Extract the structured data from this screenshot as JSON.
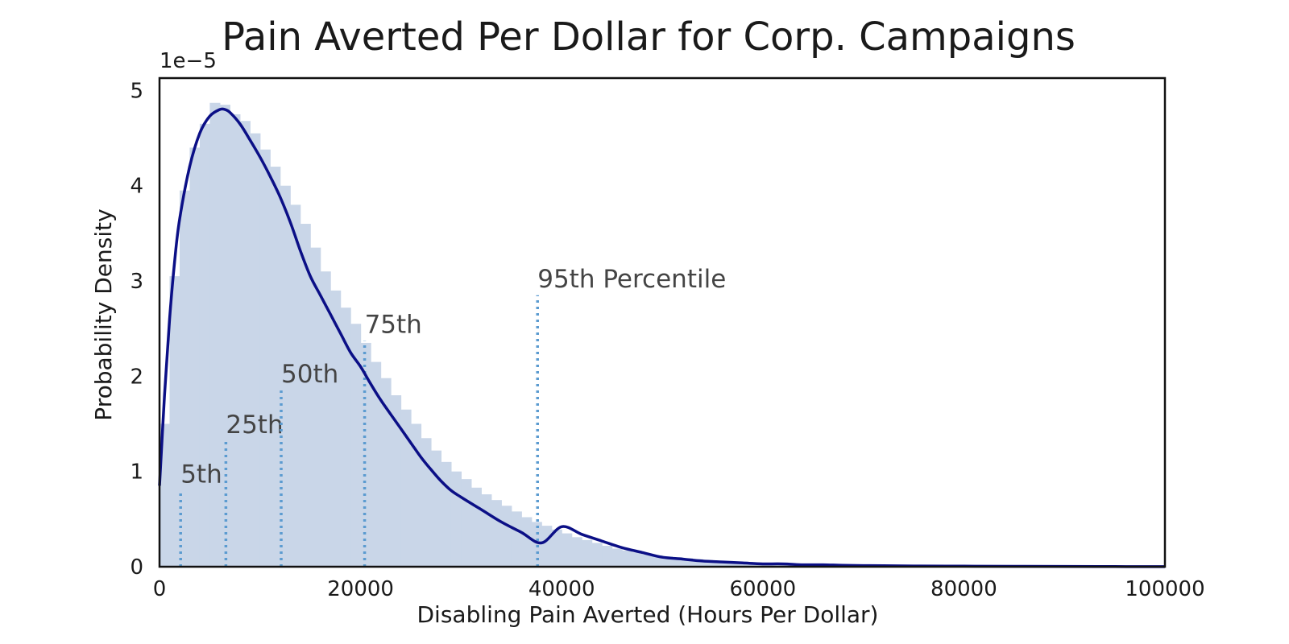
{
  "chart_data": {
    "type": "histogram+density",
    "title": "Pain Averted Per Dollar for Corp. Campaigns",
    "xlabel": "Disabling Pain Averted (Hours Per Dollar)",
    "ylabel": "Probability Density",
    "y_offset_label": "1e−5",
    "xlim": [
      0,
      100000
    ],
    "ylim": [
      0,
      5.13
    ],
    "x_ticks": [
      0,
      20000,
      40000,
      60000,
      80000,
      100000
    ],
    "x_tick_labels": [
      "0",
      "20000",
      "40000",
      "60000",
      "80000",
      "100000"
    ],
    "y_ticks": [
      0,
      1,
      2,
      3,
      4,
      5
    ],
    "y_tick_labels": [
      "0",
      "1",
      "2",
      "3",
      "4",
      "5"
    ],
    "colors": {
      "hist_fill": "#c9d6e8",
      "kde_line": "#0b0f86",
      "percentile_line": "#5b9bd0",
      "frame": "#111111"
    },
    "histogram": {
      "bin_width": 1000,
      "bin_starts": [
        0,
        1000,
        2000,
        3000,
        4000,
        5000,
        6000,
        7000,
        8000,
        9000,
        10000,
        11000,
        12000,
        13000,
        14000,
        15000,
        16000,
        17000,
        18000,
        19000,
        20000,
        21000,
        22000,
        23000,
        24000,
        25000,
        26000,
        27000,
        28000,
        29000,
        30000,
        31000,
        32000,
        33000,
        34000,
        35000,
        36000,
        37000,
        38000,
        39000,
        40000,
        41000,
        42000,
        43000,
        44000,
        45000,
        46000,
        47000,
        48000,
        49000,
        50000,
        51000,
        52000,
        53000,
        54000,
        55000,
        56000,
        57000,
        58000,
        59000,
        60000,
        61000,
        62000,
        63000,
        64000,
        65000,
        66000,
        67000,
        68000,
        69000,
        70000
      ],
      "densities": [
        1.5,
        3.05,
        3.95,
        4.4,
        4.65,
        4.87,
        4.85,
        4.75,
        4.68,
        4.55,
        4.38,
        4.2,
        4.0,
        3.8,
        3.6,
        3.35,
        3.1,
        2.9,
        2.72,
        2.55,
        2.35,
        2.15,
        1.98,
        1.8,
        1.65,
        1.5,
        1.35,
        1.22,
        1.1,
        1.0,
        0.92,
        0.83,
        0.76,
        0.7,
        0.64,
        0.58,
        0.52,
        0.47,
        0.43,
        0.39,
        0.35,
        0.31,
        0.28,
        0.25,
        0.22,
        0.19,
        0.17,
        0.15,
        0.13,
        0.12,
        0.11,
        0.1,
        0.09,
        0.08,
        0.07,
        0.06,
        0.06,
        0.05,
        0.05,
        0.04,
        0.04,
        0.03,
        0.03,
        0.03,
        0.02,
        0.02,
        0.02,
        0.02,
        0.02,
        0.01,
        0.01
      ]
    },
    "kde": {
      "x": [
        0,
        500,
        1000,
        1500,
        2000,
        3000,
        4000,
        5000,
        6000,
        6500,
        7000,
        8000,
        9000,
        10000,
        11000,
        12000,
        13000,
        14000,
        15000,
        16000,
        17000,
        18000,
        19000,
        20000,
        21000,
        22000,
        23000,
        24000,
        25000,
        26000,
        27000,
        28000,
        29000,
        30000,
        32000,
        34000,
        36000,
        38000,
        40000,
        42000,
        44000,
        46000,
        48000,
        50000,
        52000,
        54000,
        56000,
        58000,
        60000,
        62000,
        64000,
        66000,
        68000,
        70000,
        72000,
        75000,
        80000,
        85000,
        90000,
        95000,
        100000
      ],
      "y": [
        0.85,
        1.8,
        2.6,
        3.2,
        3.65,
        4.2,
        4.55,
        4.73,
        4.8,
        4.8,
        4.77,
        4.65,
        4.48,
        4.3,
        4.1,
        3.88,
        3.62,
        3.32,
        3.05,
        2.85,
        2.65,
        2.45,
        2.25,
        2.1,
        1.92,
        1.75,
        1.6,
        1.45,
        1.3,
        1.15,
        1.02,
        0.9,
        0.8,
        0.73,
        0.6,
        0.47,
        0.36,
        0.25,
        0.42,
        0.34,
        0.27,
        0.2,
        0.15,
        0.1,
        0.08,
        0.06,
        0.05,
        0.04,
        0.03,
        0.03,
        0.02,
        0.02,
        0.015,
        0.012,
        0.01,
        0.008,
        0.006,
        0.004,
        0.003,
        0.002,
        0.001
      ]
    },
    "percentiles": [
      {
        "label": "5th",
        "x": 2100,
        "top": 0.8
      },
      {
        "label": "25th",
        "x": 6600,
        "top": 1.32
      },
      {
        "label": "50th",
        "x": 12100,
        "top": 1.85
      },
      {
        "label": "75th",
        "x": 20400,
        "top": 2.37
      },
      {
        "label": "95th Percentile",
        "x": 37600,
        "top": 2.85
      }
    ]
  }
}
